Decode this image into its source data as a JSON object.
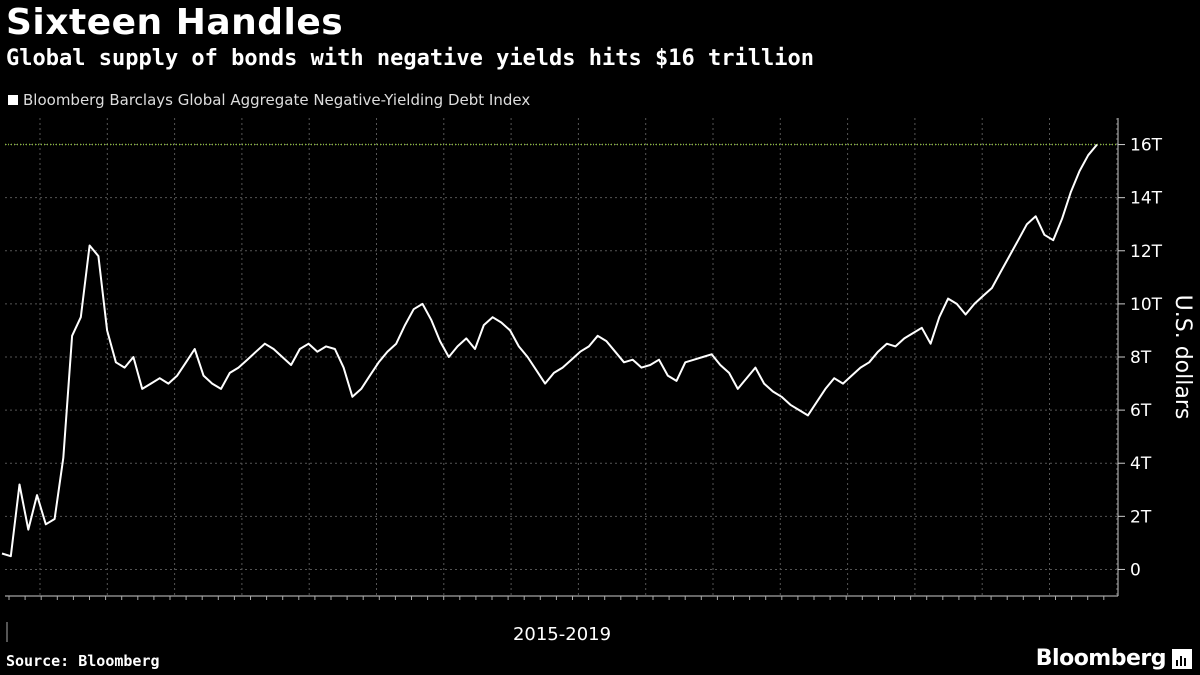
{
  "header": {
    "title": "Sixteen Handles",
    "subtitle": "Global supply of bonds with negative yields hits $16 trillion"
  },
  "legend": {
    "label": "Bloomberg Barclays Global Aggregate Negative-Yielding Debt Index"
  },
  "footer": {
    "source": "Source: Bloomberg",
    "brand": "Bloomberg"
  },
  "colors": {
    "background": "#000000",
    "line": "#ffffff",
    "highlight": "#8ab83a",
    "grid": "#555555"
  },
  "chart_data": {
    "type": "line",
    "title": "Sixteen Handles",
    "subtitle": "Global supply of bonds with negative yields hits $16 trillion",
    "xlabel": "2015-2019",
    "ylabel": "U.S. dollars",
    "x_period": "2015-2019",
    "ylim": [
      -1,
      17
    ],
    "yticks": [
      0,
      2,
      4,
      6,
      8,
      10,
      12,
      14,
      16
    ],
    "ytick_labels": [
      "0",
      "2T",
      "4T",
      "6T",
      "8T",
      "10T",
      "12T",
      "14T",
      "16T"
    ],
    "reference_line": 16,
    "grid": true,
    "legend_position": "top-left",
    "series": [
      {
        "name": "Bloomberg Barclays Global Aggregate Negative-Yielding Debt Index",
        "unit": "trillions of U.S. dollars",
        "values": [
          0.6,
          0.5,
          3.2,
          1.5,
          2.8,
          1.7,
          1.9,
          4.2,
          8.8,
          9.5,
          12.2,
          11.8,
          9.0,
          7.8,
          7.6,
          8.0,
          6.8,
          7.0,
          7.2,
          7.0,
          7.3,
          7.8,
          8.3,
          7.3,
          7.0,
          6.8,
          7.4,
          7.6,
          7.9,
          8.2,
          8.5,
          8.3,
          8.0,
          7.7,
          8.3,
          8.5,
          8.2,
          8.4,
          8.3,
          7.6,
          6.5,
          6.8,
          7.3,
          7.8,
          8.2,
          8.5,
          9.2,
          9.8,
          10.0,
          9.4,
          8.6,
          8.0,
          8.4,
          8.7,
          8.3,
          9.2,
          9.5,
          9.3,
          9.0,
          8.4,
          8.0,
          7.5,
          7.0,
          7.4,
          7.6,
          7.9,
          8.2,
          8.4,
          8.8,
          8.6,
          8.2,
          7.8,
          7.9,
          7.6,
          7.7,
          7.9,
          7.3,
          7.1,
          7.8,
          7.9,
          8.0,
          8.1,
          7.7,
          7.4,
          6.8,
          7.2,
          7.6,
          7.0,
          6.7,
          6.5,
          6.2,
          6.0,
          5.8,
          6.3,
          6.8,
          7.2,
          7.0,
          7.3,
          7.6,
          7.8,
          8.2,
          8.5,
          8.4,
          8.7,
          8.9,
          9.1,
          8.5,
          9.5,
          10.2,
          10.0,
          9.6,
          10.0,
          10.3,
          10.6,
          11.2,
          11.8,
          12.4,
          13.0,
          13.3,
          12.6,
          12.4,
          13.2,
          14.2,
          15.0,
          15.6,
          16.0
        ]
      }
    ]
  }
}
